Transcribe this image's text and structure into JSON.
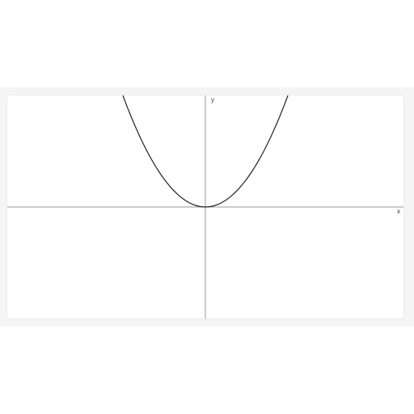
{
  "chart_data": {
    "type": "line",
    "x_label": "x",
    "y_label": "y",
    "x": [
      -1,
      -0.95,
      -0.9,
      -0.85,
      -0.8,
      -0.75,
      -0.7,
      -0.65,
      -0.6,
      -0.55,
      -0.5,
      -0.45,
      -0.4,
      -0.35,
      -0.3,
      -0.25,
      -0.2,
      -0.15,
      -0.1,
      -0.05,
      0,
      0.05,
      0.1,
      0.15,
      0.2,
      0.25,
      0.3,
      0.35,
      0.4,
      0.45,
      0.5,
      0.55,
      0.6,
      0.65,
      0.7,
      0.75,
      0.8,
      0.85,
      0.9,
      0.95,
      1
    ],
    "values": [
      1,
      0.9025,
      0.81,
      0.7225,
      0.64,
      0.5625,
      0.49,
      0.4225,
      0.36,
      0.3025,
      0.25,
      0.2025,
      0.16,
      0.1225,
      0.09,
      0.0625,
      0.04,
      0.0225,
      0.01,
      0.0025,
      0,
      0.0025,
      0.01,
      0.0225,
      0.04,
      0.0625,
      0.09,
      0.1225,
      0.16,
      0.2025,
      0.25,
      0.3025,
      0.36,
      0.4225,
      0.49,
      0.5625,
      0.64,
      0.7225,
      0.81,
      0.9025,
      1
    ],
    "color": "#222222",
    "xlim": [
      -2.4,
      2.4
    ],
    "ylim": [
      -1,
      1
    ]
  }
}
